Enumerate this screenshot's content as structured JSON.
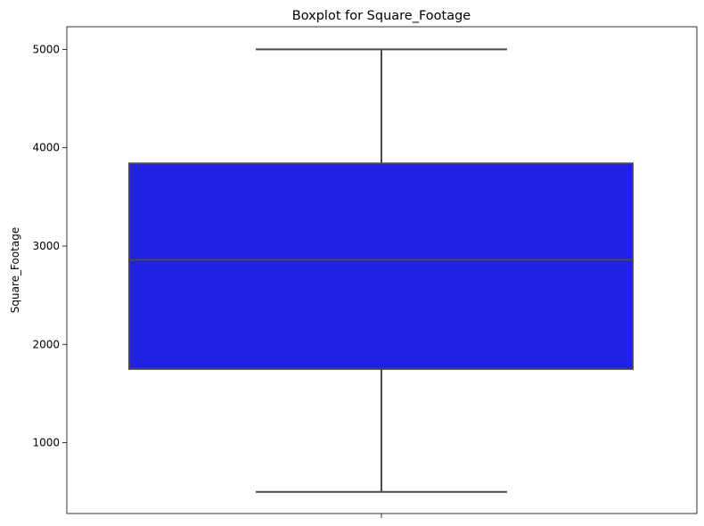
{
  "chart_data": {
    "type": "box",
    "title": "Boxplot for Square_Footage",
    "xlabel": "",
    "ylabel": "Square_Footage",
    "ylim": [
      280,
      5230
    ],
    "yticks": [
      1000,
      2000,
      3000,
      4000,
      5000
    ],
    "grid": false,
    "colors": {
      "box_fill": "#2121e3",
      "lines": "#4a4a4a"
    },
    "series": [
      {
        "whisker_low": 500,
        "q1": 1750,
        "median": 2860,
        "q3": 3840,
        "whisker_high": 5000
      }
    ]
  }
}
